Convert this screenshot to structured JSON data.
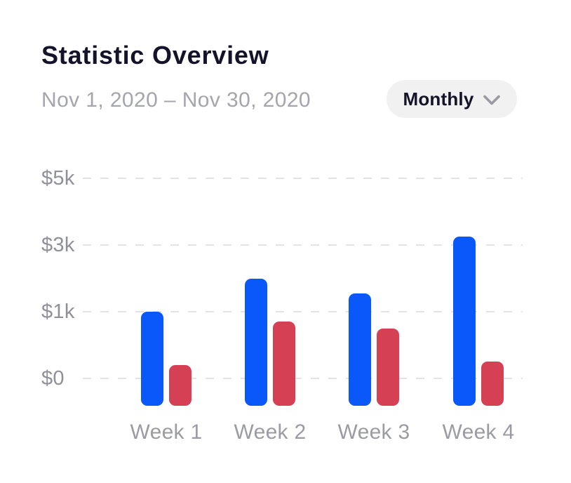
{
  "header": {
    "title": "Statistic Overview",
    "date_range": "Nov 1, 2020 – Nov 30, 2020",
    "period_selector": {
      "label": "Monthly",
      "icon": "chevron-down"
    }
  },
  "colors": {
    "title": "#141329",
    "subtitle": "#a5a5ad",
    "axis_label": "#90909a",
    "x_label": "#9b9ba3",
    "gridline": "#e3e3e6",
    "pill_bg": "#f1f1f2",
    "pill_text": "#141329",
    "chevron": "#9a9aa2"
  },
  "chart_data": {
    "type": "bar",
    "title": "Statistic Overview",
    "xlabel": "",
    "ylabel": "",
    "categories": [
      "Week 1",
      "Week 2",
      "Week 3",
      "Week 4"
    ],
    "series": [
      {
        "name": "blue",
        "color": "#0a57fa",
        "values": [
          1000,
          2000,
          1550,
          3250
        ]
      },
      {
        "name": "red",
        "color": "#d64055",
        "values": [
          200,
          850,
          750,
          250
        ]
      }
    ],
    "y_ticks": [
      {
        "label": "$5k",
        "value": 5000
      },
      {
        "label": "$3k",
        "value": 3000
      },
      {
        "label": "$1k",
        "value": 1000
      },
      {
        "label": "$0",
        "value": 0
      }
    ],
    "ylim": [
      0,
      5000
    ],
    "grid": "horizontal-dashed",
    "legend": "none",
    "axis_note": "y ticks evenly spaced (0, 1k, 3k, 5k); bars extend slightly below the $0 line with fully rounded caps"
  }
}
